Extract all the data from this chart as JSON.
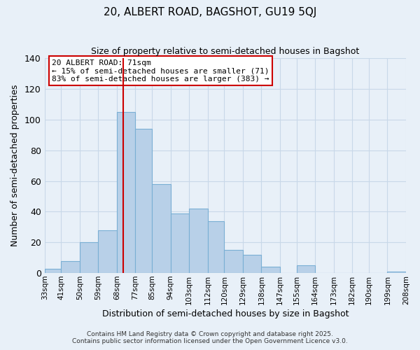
{
  "title": "20, ALBERT ROAD, BAGSHOT, GU19 5QJ",
  "subtitle": "Size of property relative to semi-detached houses in Bagshot",
  "xlabel": "Distribution of semi-detached houses by size in Bagshot",
  "ylabel": "Number of semi-detached properties",
  "bins": [
    33,
    41,
    50,
    59,
    68,
    77,
    85,
    94,
    103,
    112,
    120,
    129,
    138,
    147,
    155,
    164,
    173,
    182,
    190,
    199,
    208
  ],
  "counts": [
    3,
    8,
    20,
    28,
    105,
    94,
    58,
    39,
    42,
    34,
    15,
    12,
    4,
    0,
    5,
    0,
    0,
    0,
    0,
    1
  ],
  "tick_labels": [
    "33sqm",
    "41sqm",
    "50sqm",
    "59sqm",
    "68sqm",
    "77sqm",
    "85sqm",
    "94sqm",
    "103sqm",
    "112sqm",
    "120sqm",
    "129sqm",
    "138sqm",
    "147sqm",
    "155sqm",
    "164sqm",
    "173sqm",
    "182sqm",
    "190sqm",
    "199sqm",
    "208sqm"
  ],
  "bar_color": "#b8d0e8",
  "bar_edge_color": "#7aafd4",
  "grid_color": "#c8d8e8",
  "bg_color": "#e8f0f8",
  "vline_x": 71,
  "vline_color": "#cc0000",
  "annotation_title": "20 ALBERT ROAD: 71sqm",
  "annotation_line1": "← 15% of semi-detached houses are smaller (71)",
  "annotation_line2": "83% of semi-detached houses are larger (383) →",
  "annotation_box_color": "#ffffff",
  "annotation_edge_color": "#cc0000",
  "ylim": [
    0,
    140
  ],
  "yticks": [
    0,
    20,
    40,
    60,
    80,
    100,
    120,
    140
  ],
  "footer1": "Contains HM Land Registry data © Crown copyright and database right 2025.",
  "footer2": "Contains public sector information licensed under the Open Government Licence v3.0."
}
